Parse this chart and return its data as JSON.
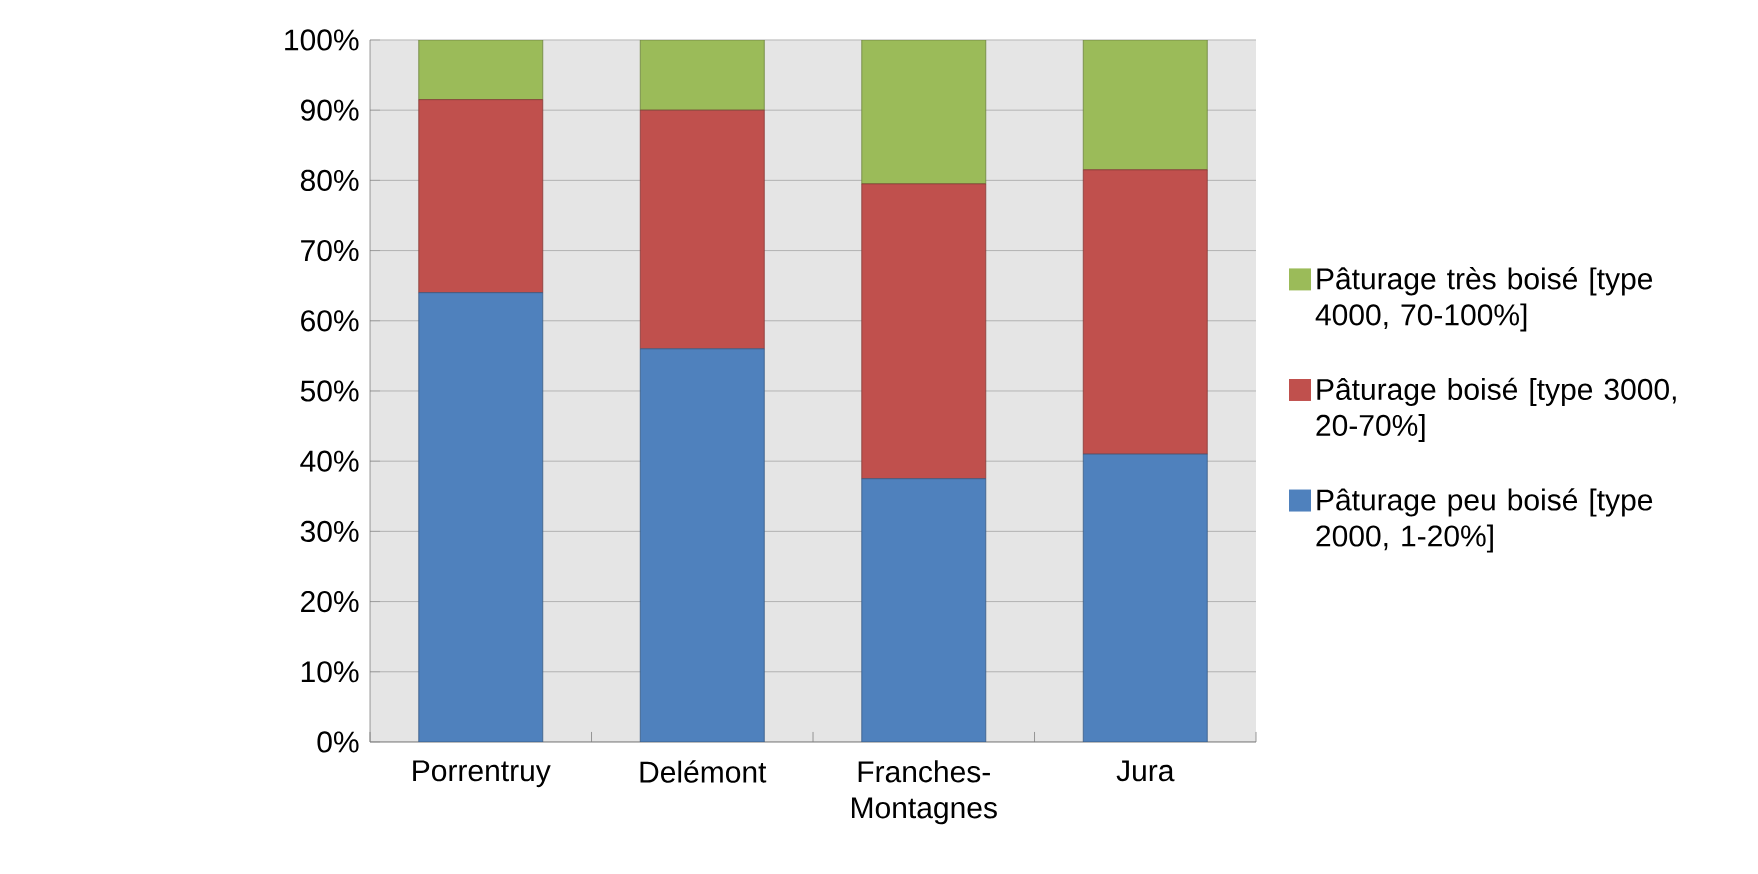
{
  "chart_data": {
    "type": "bar",
    "stacked": true,
    "categories": [
      "Porrentruy",
      "Delémont",
      "Franches-Montagnes",
      "Jura"
    ],
    "series": [
      {
        "name": "Pâturage peu boisé [type 2000, 1-20%]",
        "color": "#4f81bd",
        "values": [
          64,
          56,
          37.5,
          41
        ]
      },
      {
        "name": "Pâturage boisé [type 3000, 20-70%]",
        "color": "#c0504d",
        "values": [
          27.5,
          34,
          42,
          40.5
        ]
      },
      {
        "name": "Pâturage très boisé [type 4000, 70-100%]",
        "color": "#9bbb59",
        "values": [
          8.5,
          10,
          20.5,
          18.5
        ]
      }
    ],
    "ylim": [
      0,
      100
    ],
    "yticks": [
      {
        "value": 0,
        "label": "0%"
      },
      {
        "value": 10,
        "label": "10%"
      },
      {
        "value": 20,
        "label": "20%"
      },
      {
        "value": 30,
        "label": "30%"
      },
      {
        "value": 40,
        "label": "40%"
      },
      {
        "value": 50,
        "label": "50%"
      },
      {
        "value": 60,
        "label": "60%"
      },
      {
        "value": 70,
        "label": "70%"
      },
      {
        "value": 80,
        "label": "80%"
      },
      {
        "value": 90,
        "label": "90%"
      },
      {
        "value": 100,
        "label": "100%"
      }
    ],
    "grid": "y",
    "legend": "right"
  }
}
